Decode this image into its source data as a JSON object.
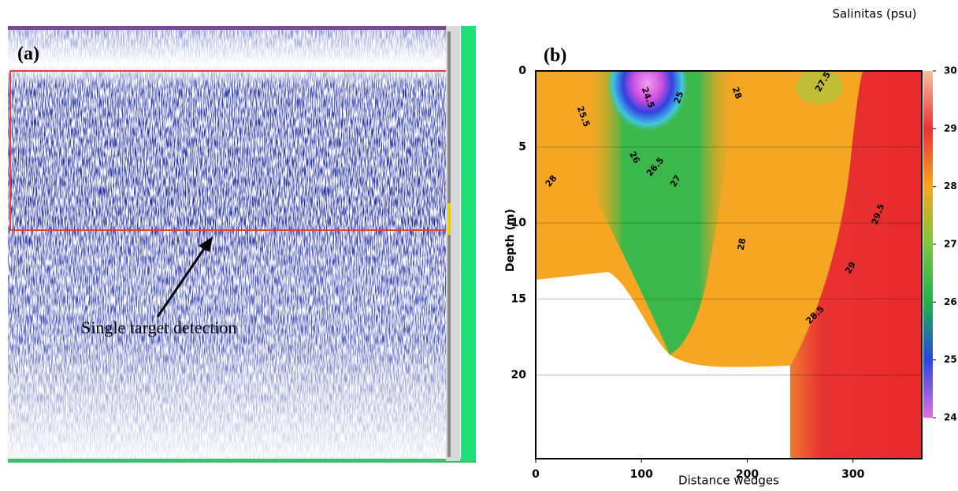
{
  "chart_data": [
    {
      "type": "image",
      "label": "(a)",
      "annotation": "Single target detection"
    },
    {
      "type": "contour",
      "label": "(b)",
      "x_label": "Distance wedges",
      "y_label": "Depth (m)",
      "xlim": [
        0,
        365
      ],
      "ylim": [
        0,
        25.5
      ],
      "xticks": [
        0,
        100,
        200,
        300
      ],
      "yticks": [
        0,
        5,
        10,
        15,
        20
      ],
      "colorbar": {
        "title": "Salinitas (psu)",
        "lim": [
          24,
          30
        ],
        "ticks": [
          24,
          25,
          26,
          27,
          28,
          29,
          30
        ],
        "colors": [
          "#e070e0",
          "#2a46e0",
          "#22b04a",
          "#7cc640",
          "#f5a623",
          "#e83232",
          "#f8c0a0"
        ]
      },
      "contour_labels": [
        25.5,
        24.5,
        25,
        28,
        27.5,
        28,
        26,
        26.5,
        27,
        28,
        29,
        29.5,
        28.5
      ]
    }
  ]
}
